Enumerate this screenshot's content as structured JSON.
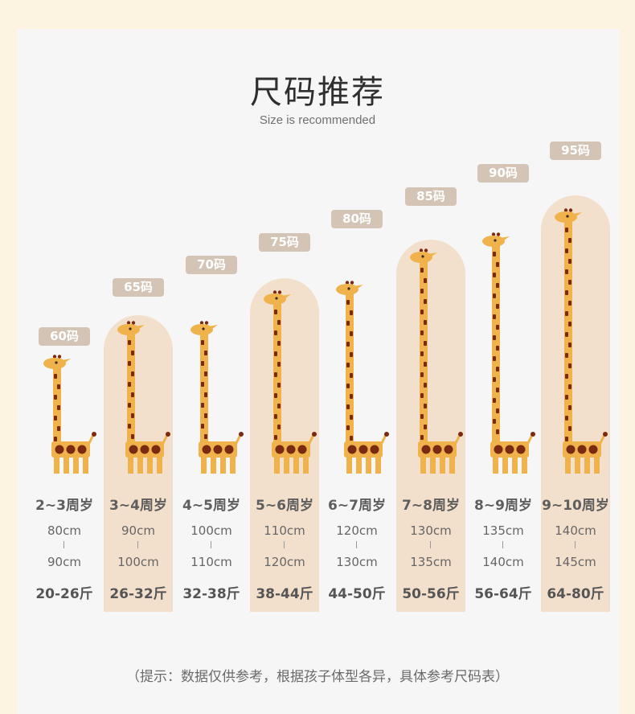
{
  "header": {
    "title": "尺码推荐",
    "subtitle": "Size is recommended"
  },
  "sizes": [
    {
      "size": "60码",
      "age": "2~3周岁",
      "height_min": "80cm",
      "height_max": "90cm",
      "weight": "20-26斤",
      "highlighted": false
    },
    {
      "size": "65码",
      "age": "3~4周岁",
      "height_min": "90cm",
      "height_max": "100cm",
      "weight": "26-32斤",
      "highlighted": true
    },
    {
      "size": "70码",
      "age": "4~5周岁",
      "height_min": "100cm",
      "height_max": "110cm",
      "weight": "32-38斤",
      "highlighted": false
    },
    {
      "size": "75码",
      "age": "5~6周岁",
      "height_min": "110cm",
      "height_max": "120cm",
      "weight": "38-44斤",
      "highlighted": true
    },
    {
      "size": "80码",
      "age": "6~7周岁",
      "height_min": "120cm",
      "height_max": "130cm",
      "weight": "44-50斤",
      "highlighted": false
    },
    {
      "size": "85码",
      "age": "7~8周岁",
      "height_min": "130cm",
      "height_max": "135cm",
      "weight": "50-56斤",
      "highlighted": true
    },
    {
      "size": "90码",
      "age": "8~9周岁",
      "height_min": "135cm",
      "height_max": "140cm",
      "weight": "56-64斤",
      "highlighted": false
    },
    {
      "size": "95码",
      "age": "9~10周岁",
      "height_min": "140cm",
      "height_max": "145cm",
      "weight": "64-80斤",
      "highlighted": true
    }
  ],
  "footer": {
    "note": "（提示：数据仅供参考，根据孩子体型各异，具体参考尺码表）"
  },
  "colors": {
    "highlight": "#f3e0cc",
    "badge": "#d3c4b5",
    "giraffe_body": "#f0b24b",
    "giraffe_spot": "#7b2a12"
  }
}
